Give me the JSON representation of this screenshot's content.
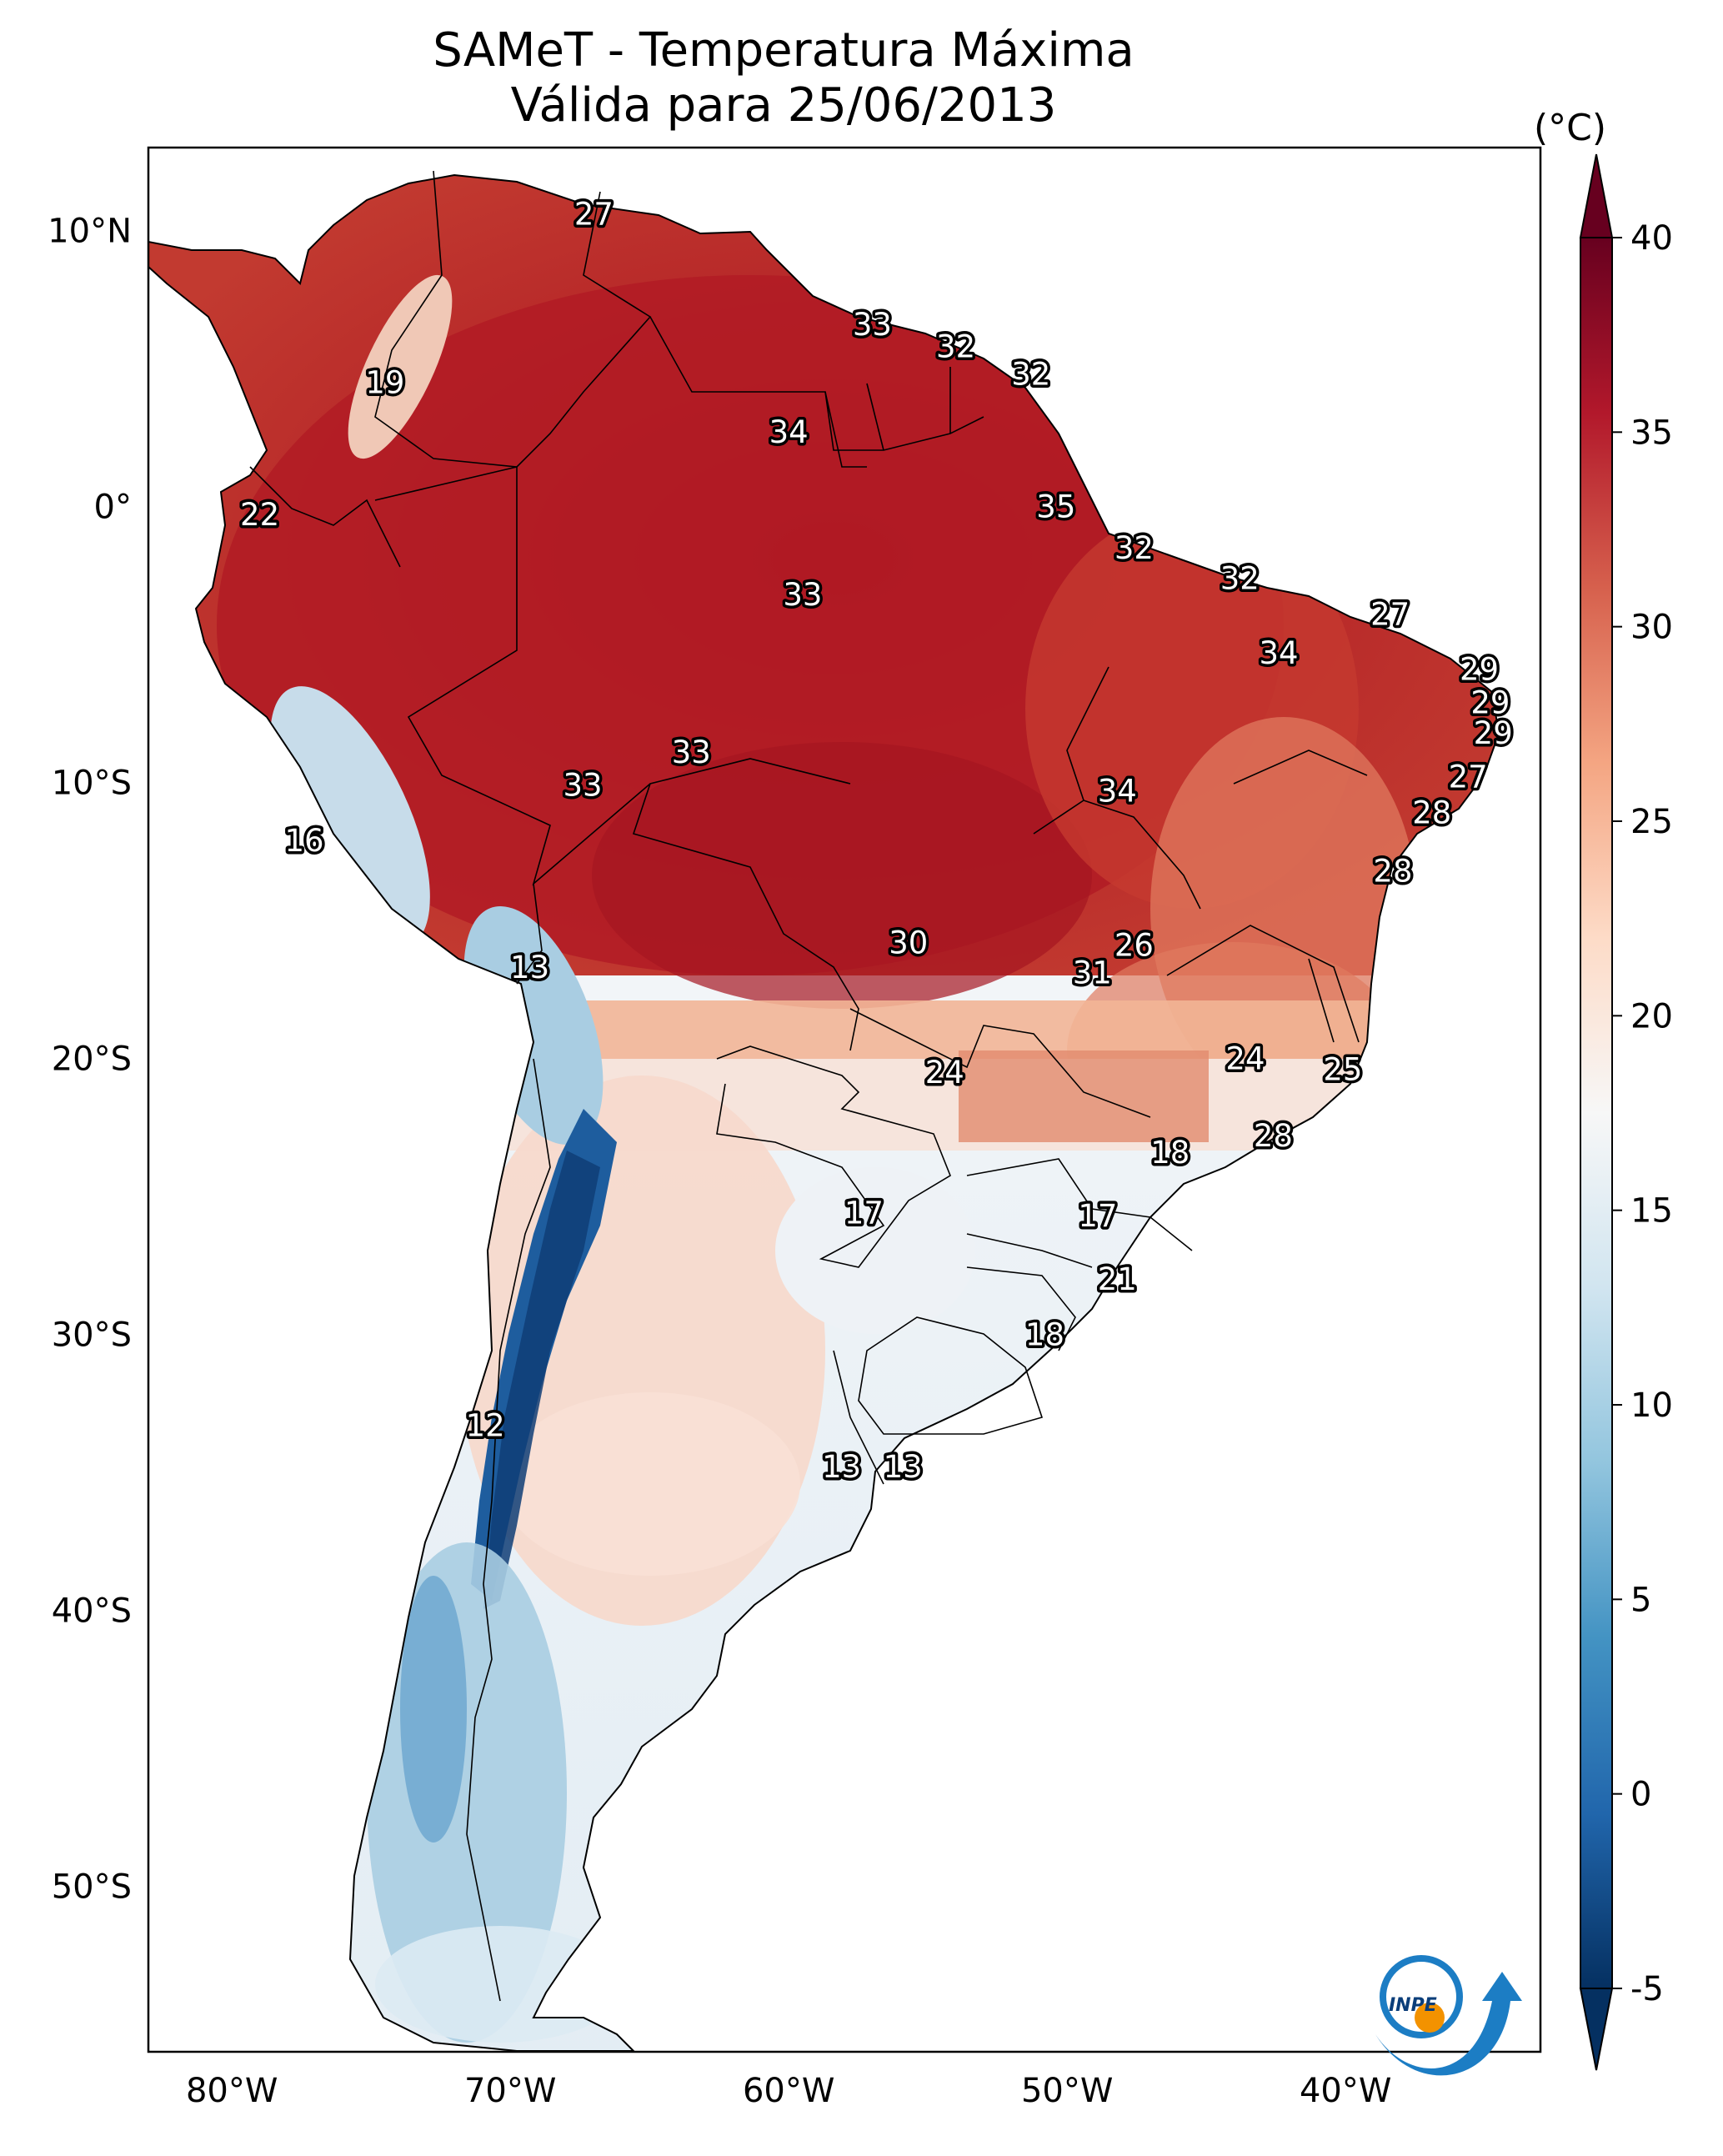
{
  "title": {
    "line1": "SAMeT - Temperatura Máxima",
    "line2": "Válida para 25/06/2013"
  },
  "map": {
    "lon_range": [
      -83,
      -33
    ],
    "lat_range": [
      -56,
      13
    ],
    "lon_ticks": [
      "80°W",
      "70°W",
      "60°W",
      "50°W",
      "40°W"
    ],
    "lat_ticks": [
      "10°N",
      "0°",
      "10°S",
      "20°S",
      "30°S",
      "40°S",
      "50°S"
    ],
    "labels": [
      {
        "text": "27",
        "lon": -67,
        "lat": 10.6
      },
      {
        "text": "19",
        "lon": -74.5,
        "lat": 4.5
      },
      {
        "text": "33",
        "lon": -57,
        "lat": 6.6
      },
      {
        "text": "32",
        "lon": -54,
        "lat": 5.8
      },
      {
        "text": "32",
        "lon": -51.3,
        "lat": 4.8
      },
      {
        "text": "34",
        "lon": -60,
        "lat": 2.7
      },
      {
        "text": "22",
        "lon": -79,
        "lat": -0.3
      },
      {
        "text": "35",
        "lon": -50.4,
        "lat": 0.0
      },
      {
        "text": "32",
        "lon": -47.6,
        "lat": -1.5
      },
      {
        "text": "32",
        "lon": -43.8,
        "lat": -2.6
      },
      {
        "text": "33",
        "lon": -59.5,
        "lat": -3.2
      },
      {
        "text": "27",
        "lon": -38.4,
        "lat": -3.9
      },
      {
        "text": "34",
        "lon": -42.4,
        "lat": -5.3
      },
      {
        "text": "29",
        "lon": -35.2,
        "lat": -5.9
      },
      {
        "text": "29",
        "lon": -34.8,
        "lat": -7.1
      },
      {
        "text": "29",
        "lon": -34.7,
        "lat": -8.2
      },
      {
        "text": "27",
        "lon": -35.6,
        "lat": -9.8
      },
      {
        "text": "33",
        "lon": -63.5,
        "lat": -8.9
      },
      {
        "text": "33",
        "lon": -67.4,
        "lat": -10.1
      },
      {
        "text": "34",
        "lon": -48.2,
        "lat": -10.3
      },
      {
        "text": "28",
        "lon": -36.9,
        "lat": -11.1
      },
      {
        "text": "16",
        "lon": -77.4,
        "lat": -12.1
      },
      {
        "text": "28",
        "lon": -38.3,
        "lat": -13.2
      },
      {
        "text": "26",
        "lon": -47.6,
        "lat": -15.9
      },
      {
        "text": "30",
        "lon": -55.7,
        "lat": -15.8
      },
      {
        "text": "31",
        "lon": -49.1,
        "lat": -16.9
      },
      {
        "text": "13",
        "lon": -69.3,
        "lat": -16.7
      },
      {
        "text": "24",
        "lon": -43.6,
        "lat": -20.0
      },
      {
        "text": "24",
        "lon": -54.4,
        "lat": -20.5
      },
      {
        "text": "25",
        "lon": -40.1,
        "lat": -20.4
      },
      {
        "text": "28",
        "lon": -42.6,
        "lat": -22.8
      },
      {
        "text": "18",
        "lon": -46.3,
        "lat": -23.4
      },
      {
        "text": "17",
        "lon": -57.3,
        "lat": -25.6
      },
      {
        "text": "17",
        "lon": -48.9,
        "lat": -25.7
      },
      {
        "text": "21",
        "lon": -48.2,
        "lat": -28.0
      },
      {
        "text": "18",
        "lon": -50.8,
        "lat": -30.0
      },
      {
        "text": "12",
        "lon": -70.9,
        "lat": -33.3
      },
      {
        "text": "13",
        "lon": -58.1,
        "lat": -34.8
      },
      {
        "text": "13",
        "lon": -55.9,
        "lat": -34.8
      }
    ]
  },
  "colorbar": {
    "unit": "(°C)",
    "range": [
      -5,
      40
    ],
    "ticks": [
      "40",
      "35",
      "30",
      "25",
      "20",
      "15",
      "10",
      "5",
      "0",
      "-5"
    ],
    "colors": [
      "#053061",
      "#2166ac",
      "#4393c3",
      "#92c5de",
      "#d1e5f0",
      "#f7f7f7",
      "#fddbc7",
      "#f4a582",
      "#d6604d",
      "#b2182b",
      "#67001f"
    ]
  },
  "logo": {
    "text": "INPE"
  }
}
